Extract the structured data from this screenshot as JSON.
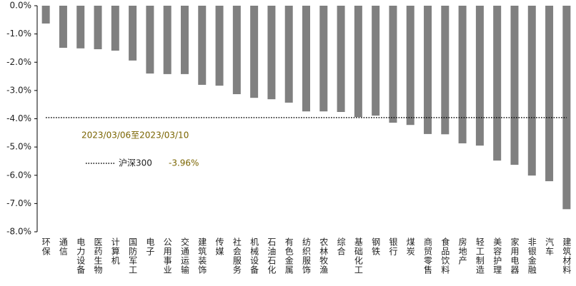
{
  "chart_data": {
    "type": "bar",
    "categories": [
      "环保",
      "通信",
      "电力设备",
      "医药生物",
      "计算机",
      "国防军工",
      "电子",
      "公用事业",
      "交通运输",
      "建筑装饰",
      "传媒",
      "社会服务",
      "机械设备",
      "石油石化",
      "有色金属",
      "纺织服饰",
      "农林牧渔",
      "综合",
      "基础化工",
      "钢铁",
      "银行",
      "煤炭",
      "商贸零售",
      "食品饮料",
      "房地产",
      "轻工制造",
      "美容护理",
      "家用电器",
      "非银金融",
      "汽车",
      "建筑材料"
    ],
    "values": [
      -0.63,
      -1.49,
      -1.51,
      -1.54,
      -1.59,
      -1.94,
      -2.4,
      -2.42,
      -2.42,
      -2.8,
      -2.83,
      -3.13,
      -3.26,
      -3.31,
      -3.43,
      -3.74,
      -3.74,
      -3.76,
      -3.94,
      -3.89,
      -4.14,
      -4.22,
      -4.54,
      -4.55,
      -4.87,
      -4.95,
      -5.48,
      -5.63,
      -6.01,
      -6.21,
      -7.2
    ],
    "color": "#808080",
    "ylim": [
      -8,
      0
    ],
    "yticks": [
      {
        "value": 0,
        "label": "0.0%"
      },
      {
        "value": -1,
        "label": "-1.0%"
      },
      {
        "value": -2,
        "label": "-2.0%"
      },
      {
        "value": -3,
        "label": "-3.0%"
      },
      {
        "value": -4,
        "label": "-4.0%"
      },
      {
        "value": -5,
        "label": "-5.0%"
      },
      {
        "value": -6,
        "label": "-6.0%"
      },
      {
        "value": -7,
        "label": "-7.0%"
      },
      {
        "value": -8,
        "label": "-8.0%"
      }
    ],
    "annotation": "2023/03/06至2023/03/10",
    "reference": {
      "name": "沪深300",
      "value": -3.96,
      "value_label": "-3.96%"
    }
  }
}
